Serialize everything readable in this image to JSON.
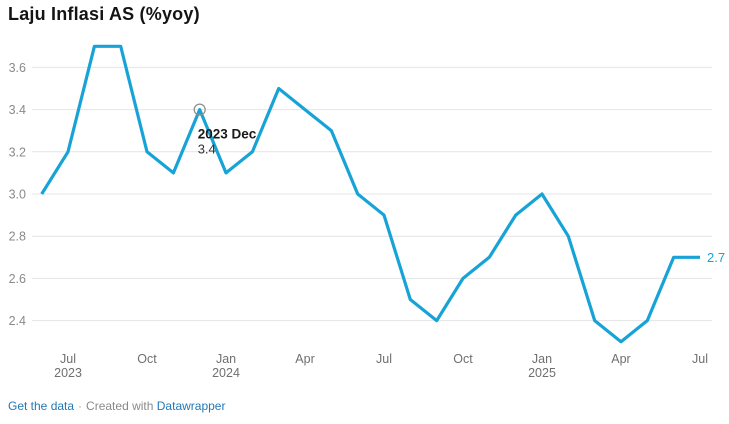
{
  "page": {
    "title": "Laju Inflasi AS (%yoy)"
  },
  "chart_data": {
    "type": "line",
    "title": "Laju Inflasi AS (%yoy)",
    "xlabel": "",
    "ylabel": "",
    "x": [
      "Jun 2023",
      "Jul 2023",
      "Aug 2023",
      "Sep 2023",
      "Oct 2023",
      "Nov 2023",
      "Dec 2023",
      "Jan 2024",
      "Feb 2024",
      "Mar 2024",
      "Apr 2024",
      "May 2024",
      "Jun 2024",
      "Jul 2024",
      "Aug 2024",
      "Sep 2024",
      "Oct 2024",
      "Nov 2024",
      "Dec 2024",
      "Jan 2025",
      "Feb 2025",
      "Mar 2025",
      "Apr 2025",
      "May 2025",
      "Jun 2025",
      "Jul 2025"
    ],
    "values": [
      3.0,
      3.2,
      3.7,
      3.7,
      3.2,
      3.1,
      3.4,
      3.1,
      3.2,
      3.5,
      3.4,
      3.3,
      3.0,
      2.9,
      2.5,
      2.4,
      2.6,
      2.7,
      2.9,
      3.0,
      2.8,
      2.4,
      2.3,
      2.4,
      2.7,
      2.7
    ],
    "ylim": [
      2.3,
      3.7
    ],
    "y_ticks": [
      2.4,
      2.6,
      2.8,
      3.0,
      3.2,
      3.4,
      3.6
    ],
    "x_ticks": [
      {
        "index": 1,
        "label": "Jul",
        "year": "2023"
      },
      {
        "index": 4,
        "label": "Oct"
      },
      {
        "index": 7,
        "label": "Jan",
        "year": "2024"
      },
      {
        "index": 10,
        "label": "Apr"
      },
      {
        "index": 13,
        "label": "Jul"
      },
      {
        "index": 16,
        "label": "Oct"
      },
      {
        "index": 19,
        "label": "Jan",
        "year": "2025"
      },
      {
        "index": 22,
        "label": "Apr"
      },
      {
        "index": 25,
        "label": "Jul"
      }
    ],
    "grid": true,
    "legend": false,
    "annotation": {
      "index": 6,
      "label": "2023 Dec",
      "value_label": "3.4"
    },
    "end_label": "2.7",
    "line_color": "#18a3d6",
    "grid_color": "#e4e4e4",
    "y_tick_color": "#8a8a8a",
    "x_tick_color": "#6f6f6f",
    "annotation_label_color": "#1a1a1a",
    "annotation_value_color": "#333333",
    "marker_stroke_color": "#8c8c8c"
  },
  "footer": {
    "get_data_label": "Get the data",
    "separator": "·",
    "created_with": "Created with",
    "datawrapper_label": "Datawrapper"
  }
}
